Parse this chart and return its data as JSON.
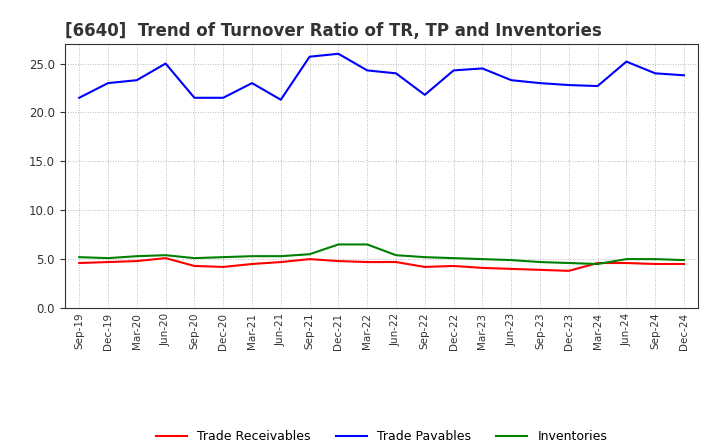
{
  "title": "[6640]  Trend of Turnover Ratio of TR, TP and Inventories",
  "x_labels": [
    "Sep-19",
    "Dec-19",
    "Mar-20",
    "Jun-20",
    "Sep-20",
    "Dec-20",
    "Mar-21",
    "Jun-21",
    "Sep-21",
    "Dec-21",
    "Mar-22",
    "Jun-22",
    "Sep-22",
    "Dec-22",
    "Mar-23",
    "Jun-23",
    "Sep-23",
    "Dec-23",
    "Mar-24",
    "Jun-24",
    "Sep-24",
    "Dec-24"
  ],
  "trade_receivables": [
    4.6,
    4.7,
    4.8,
    5.1,
    4.3,
    4.2,
    4.5,
    4.7,
    5.0,
    4.8,
    4.7,
    4.7,
    4.2,
    4.3,
    4.1,
    4.0,
    3.9,
    3.8,
    4.6,
    4.6,
    4.5,
    4.5
  ],
  "trade_payables": [
    21.5,
    23.0,
    23.3,
    25.0,
    21.5,
    21.5,
    23.0,
    21.3,
    25.7,
    26.0,
    24.3,
    24.0,
    21.8,
    24.3,
    24.5,
    23.3,
    23.0,
    22.8,
    22.7,
    25.2,
    24.0,
    23.8
  ],
  "inventories": [
    5.2,
    5.1,
    5.3,
    5.4,
    5.1,
    5.2,
    5.3,
    5.3,
    5.5,
    6.5,
    6.5,
    5.4,
    5.2,
    5.1,
    5.0,
    4.9,
    4.7,
    4.6,
    4.5,
    5.0,
    5.0,
    4.9
  ],
  "ylim": [
    0,
    27
  ],
  "yticks": [
    0.0,
    5.0,
    10.0,
    15.0,
    20.0,
    25.0
  ],
  "line_color_tr": "#ff0000",
  "line_color_tp": "#0000ff",
  "line_color_inv": "#008000",
  "background_color": "#ffffff",
  "grid_color": "#999999",
  "title_fontsize": 12,
  "legend_tr": "Trade Receivables",
  "legend_tp": "Trade Payables",
  "legend_inv": "Inventories"
}
